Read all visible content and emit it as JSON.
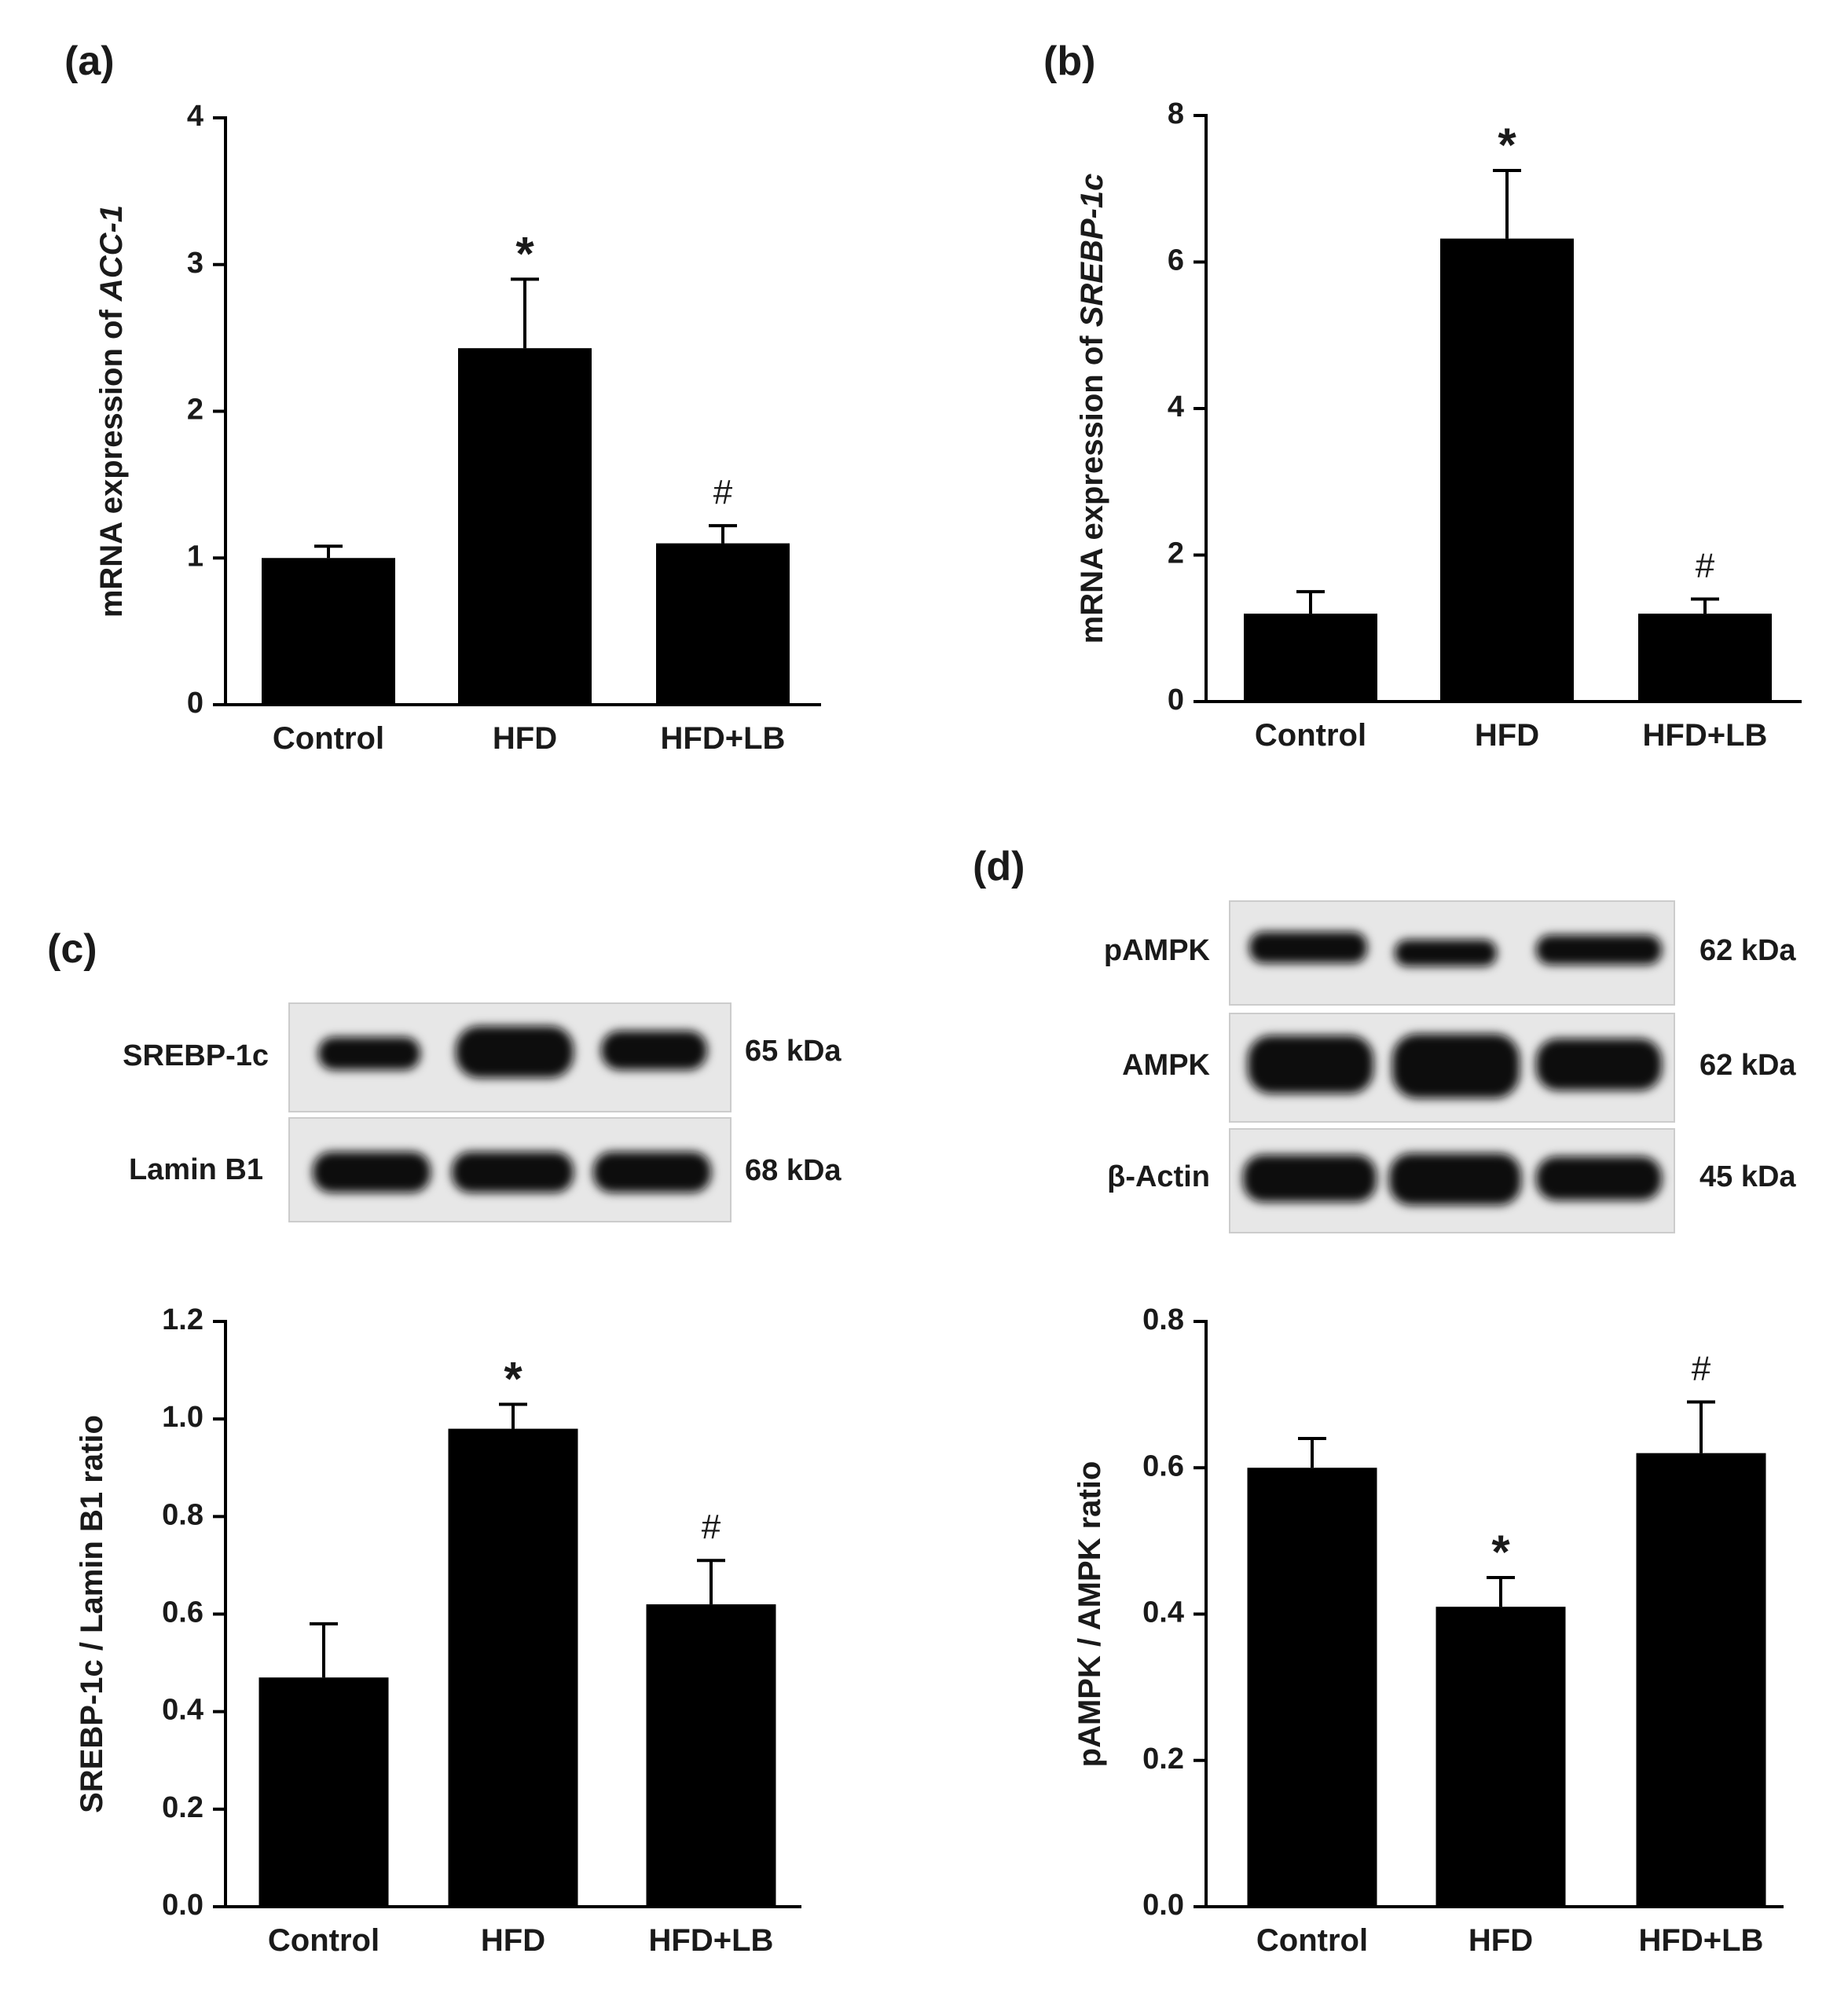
{
  "panels": [
    {
      "label": "(a)",
      "chart_data": {
        "type": "bar",
        "categories": [
          "Control",
          "HFD",
          "HFD+LB"
        ],
        "values": [
          1.0,
          2.43,
          1.1
        ],
        "errors": [
          0.08,
          0.47,
          0.12
        ],
        "markers": [
          "",
          "*",
          "#"
        ],
        "ylabel_prefix": "mRNA expression of ",
        "ylabel_gene": "ACC-1",
        "ylim": [
          0,
          4
        ],
        "yticks": [
          "0",
          "1",
          "2",
          "3",
          "4"
        ]
      }
    },
    {
      "label": "(b)",
      "chart_data": {
        "type": "bar",
        "categories": [
          "Control",
          "HFD",
          "HFD+LB"
        ],
        "values": [
          1.2,
          6.32,
          1.2
        ],
        "errors": [
          0.3,
          0.93,
          0.2
        ],
        "markers": [
          "",
          "*",
          "#"
        ],
        "ylabel_prefix": "mRNA expression of ",
        "ylabel_gene": "SREBP-1c",
        "ylim": [
          0,
          8
        ],
        "yticks": [
          "0",
          "2",
          "4",
          "6",
          "8"
        ]
      }
    },
    {
      "label": "(c)",
      "blot": {
        "rows": [
          {
            "label": "SREBP-1c",
            "kda": "65 kDa"
          },
          {
            "label": "Lamin B1",
            "kda": "68 kDa"
          }
        ]
      },
      "chart_data": {
        "type": "bar",
        "categories": [
          "Control",
          "HFD",
          "HFD+LB"
        ],
        "values": [
          0.47,
          0.98,
          0.62
        ],
        "errors": [
          0.11,
          0.05,
          0.09
        ],
        "markers": [
          "",
          "*",
          "#"
        ],
        "ylabel_prefix": "SREBP-1c / Lamin B1 ratio",
        "ylabel_gene": "",
        "ylim": [
          0,
          1.2
        ],
        "yticks": [
          "0.0",
          "0.2",
          "0.4",
          "0.6",
          "0.8",
          "1.0",
          "1.2"
        ]
      }
    },
    {
      "label": "(d)",
      "blot": {
        "rows": [
          {
            "label": "pAMPK",
            "kda": "62 kDa"
          },
          {
            "label": "AMPK",
            "kda": "62 kDa"
          },
          {
            "label": "β-Actin",
            "kda": "45 kDa"
          }
        ]
      },
      "chart_data": {
        "type": "bar",
        "categories": [
          "Control",
          "HFD",
          "HFD+LB"
        ],
        "values": [
          0.6,
          0.41,
          0.62
        ],
        "errors": [
          0.04,
          0.04,
          0.07
        ],
        "markers": [
          "",
          "*",
          "#"
        ],
        "ylabel_prefix": "pAMPK / AMPK ratio",
        "ylabel_gene": "",
        "ylim": [
          0,
          0.8
        ],
        "yticks": [
          "0.0",
          "0.2",
          "0.4",
          "0.6",
          "0.8"
        ]
      }
    }
  ]
}
